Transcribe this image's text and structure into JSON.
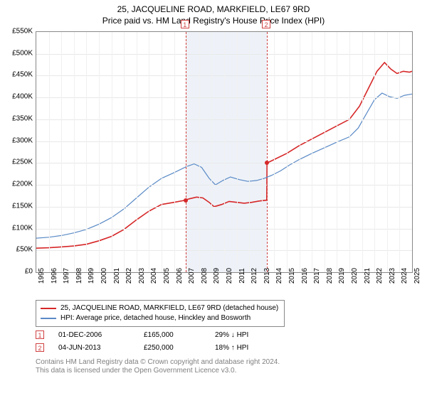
{
  "title": "25, JACQUELINE ROAD, MARKFIELD, LE67 9RD",
  "subtitle": "Price paid vs. HM Land Registry's House Price Index (HPI)",
  "chart": {
    "type": "line",
    "background_color": "#ffffff",
    "border_color": "#888888",
    "grid_color_y": "#e8e8e8",
    "grid_color_x": "#f0f0f0",
    "shaded_color": "#eef2f8",
    "title_fontsize": 12,
    "label_fontsize": 10,
    "ylim": [
      0,
      550
    ],
    "ytick_step": 50,
    "ytick_labels": [
      "£0",
      "£50K",
      "£100K",
      "£150K",
      "£200K",
      "£250K",
      "£300K",
      "£350K",
      "£400K",
      "£450K",
      "£500K",
      "£550K"
    ],
    "x_years": [
      1995,
      1996,
      1997,
      1998,
      1999,
      2000,
      2001,
      2002,
      2003,
      2004,
      2005,
      2006,
      2007,
      2008,
      2009,
      2010,
      2011,
      2012,
      2013,
      2014,
      2015,
      2016,
      2017,
      2018,
      2019,
      2020,
      2021,
      2022,
      2023,
      2024,
      2025
    ],
    "shaded_span": {
      "from_year": 2006.92,
      "to_year": 2013.42
    },
    "marker_lines": [
      {
        "year": 2006.92,
        "label": "1",
        "box_color": "#d04040"
      },
      {
        "year": 2013.42,
        "label": "2",
        "box_color": "#d04040"
      }
    ],
    "series": [
      {
        "name": "price_paid",
        "label": "25, JACQUELINE ROAD, MARKFIELD, LE67 9RD (detached house)",
        "color": "#d62728",
        "line_width": 1.6,
        "points": [
          [
            1995.0,
            55
          ],
          [
            1996.0,
            56
          ],
          [
            1997.0,
            58
          ],
          [
            1998.0,
            60
          ],
          [
            1999.0,
            64
          ],
          [
            2000.0,
            72
          ],
          [
            2001.0,
            82
          ],
          [
            2002.0,
            98
          ],
          [
            2003.0,
            120
          ],
          [
            2004.0,
            140
          ],
          [
            2005.0,
            155
          ],
          [
            2006.0,
            160
          ],
          [
            2006.92,
            165
          ],
          [
            2007.2,
            168
          ],
          [
            2007.8,
            172
          ],
          [
            2008.3,
            170
          ],
          [
            2008.8,
            160
          ],
          [
            2009.2,
            150
          ],
          [
            2009.8,
            155
          ],
          [
            2010.4,
            162
          ],
          [
            2011.0,
            160
          ],
          [
            2011.6,
            158
          ],
          [
            2012.2,
            160
          ],
          [
            2012.8,
            163
          ],
          [
            2013.4,
            165
          ],
          [
            2013.42,
            250
          ],
          [
            2014.0,
            258
          ],
          [
            2015.0,
            272
          ],
          [
            2016.0,
            290
          ],
          [
            2017.0,
            305
          ],
          [
            2018.0,
            320
          ],
          [
            2019.0,
            335
          ],
          [
            2020.0,
            350
          ],
          [
            2020.8,
            380
          ],
          [
            2021.5,
            420
          ],
          [
            2022.2,
            460
          ],
          [
            2022.8,
            480
          ],
          [
            2023.3,
            465
          ],
          [
            2023.8,
            455
          ],
          [
            2024.3,
            460
          ],
          [
            2024.8,
            458
          ],
          [
            2025.0,
            460
          ]
        ]
      },
      {
        "name": "hpi",
        "label": "HPI: Average price, detached house, Hinckley and Bosworth",
        "color": "#5a8ac6",
        "line_width": 1.2,
        "points": [
          [
            1995.0,
            78
          ],
          [
            1996.0,
            80
          ],
          [
            1997.0,
            84
          ],
          [
            1998.0,
            90
          ],
          [
            1999.0,
            98
          ],
          [
            2000.0,
            110
          ],
          [
            2001.0,
            125
          ],
          [
            2002.0,
            145
          ],
          [
            2003.0,
            170
          ],
          [
            2004.0,
            195
          ],
          [
            2005.0,
            215
          ],
          [
            2006.0,
            228
          ],
          [
            2007.0,
            242
          ],
          [
            2007.6,
            248
          ],
          [
            2008.2,
            240
          ],
          [
            2008.8,
            215
          ],
          [
            2009.3,
            200
          ],
          [
            2009.9,
            210
          ],
          [
            2010.5,
            218
          ],
          [
            2011.2,
            212
          ],
          [
            2011.9,
            208
          ],
          [
            2012.6,
            210
          ],
          [
            2013.2,
            215
          ],
          [
            2013.8,
            222
          ],
          [
            2014.5,
            232
          ],
          [
            2015.2,
            245
          ],
          [
            2016.0,
            258
          ],
          [
            2017.0,
            272
          ],
          [
            2018.0,
            285
          ],
          [
            2019.0,
            298
          ],
          [
            2020.0,
            310
          ],
          [
            2020.7,
            330
          ],
          [
            2021.4,
            365
          ],
          [
            2022.0,
            395
          ],
          [
            2022.6,
            410
          ],
          [
            2023.2,
            402
          ],
          [
            2023.8,
            398
          ],
          [
            2024.4,
            405
          ],
          [
            2025.0,
            408
          ]
        ]
      }
    ],
    "dots": [
      {
        "year": 2006.92,
        "value": 165,
        "color": "#d62728"
      },
      {
        "year": 2013.42,
        "value": 250,
        "color": "#d62728"
      }
    ]
  },
  "legend": {
    "border_color": "#888888",
    "items": [
      {
        "color": "#d62728",
        "label": "25, JACQUELINE ROAD, MARKFIELD, LE67 9RD (detached house)"
      },
      {
        "color": "#5a8ac6",
        "label": "HPI: Average price, detached house, Hinckley and Bosworth"
      }
    ]
  },
  "transactions": [
    {
      "marker": "1",
      "date": "01-DEC-2006",
      "price": "£165,000",
      "delta": "29% ↓ HPI"
    },
    {
      "marker": "2",
      "date": "04-JUN-2013",
      "price": "£250,000",
      "delta": "18% ↑ HPI"
    }
  ],
  "footnote_line1": "Contains HM Land Registry data © Crown copyright and database right 2024.",
  "footnote_line2": "This data is licensed under the Open Government Licence v3.0."
}
